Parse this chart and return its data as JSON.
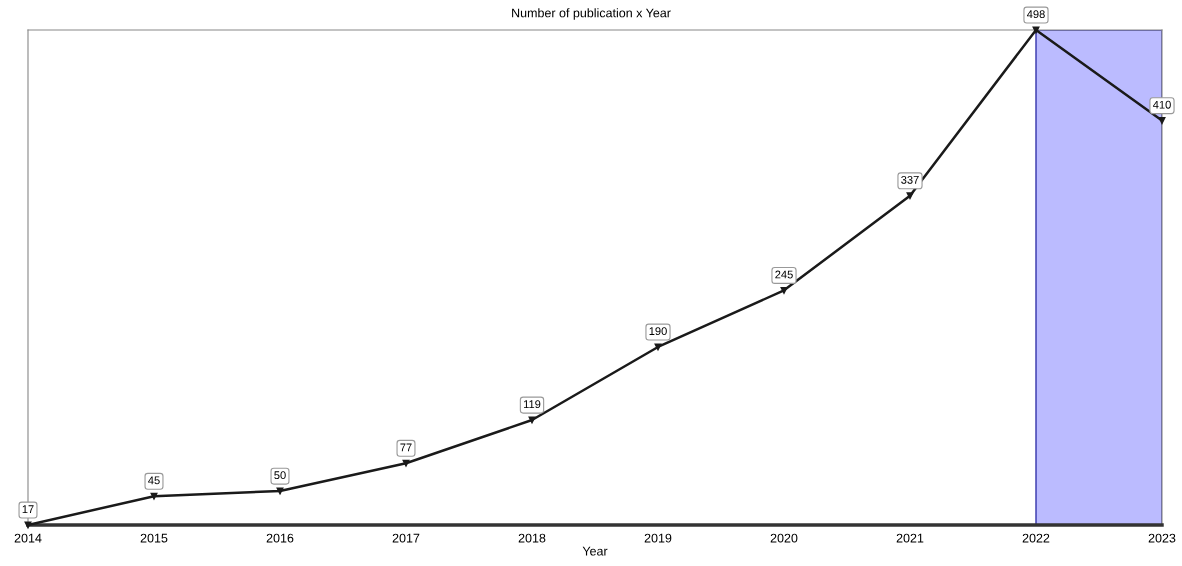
{
  "chart_data": {
    "type": "line",
    "title": "Number of publication x Year",
    "xlabel": "Year",
    "x": [
      2014,
      2015,
      2016,
      2017,
      2018,
      2019,
      2020,
      2021,
      2022,
      2023
    ],
    "series": [
      {
        "color": "#1a1a1a",
        "values": [
          17,
          45,
          50,
          77,
          119,
          190,
          245,
          337,
          498,
          410
        ]
      }
    ],
    "xlim": [
      2014,
      2023
    ],
    "xticks": [
      2014,
      2015,
      2016,
      2017,
      2018,
      2019,
      2020,
      2021,
      2022,
      2023
    ],
    "ylim": [
      17,
      498
    ],
    "tick_labels": "x",
    "bands": [
      {
        "axis": "x",
        "from": 2022,
        "to": 2023,
        "color": "#bbbbff"
      }
    ],
    "data_labels": true,
    "marker": "triangle",
    "line_style": "solid",
    "grid": false,
    "legend": false
  }
}
